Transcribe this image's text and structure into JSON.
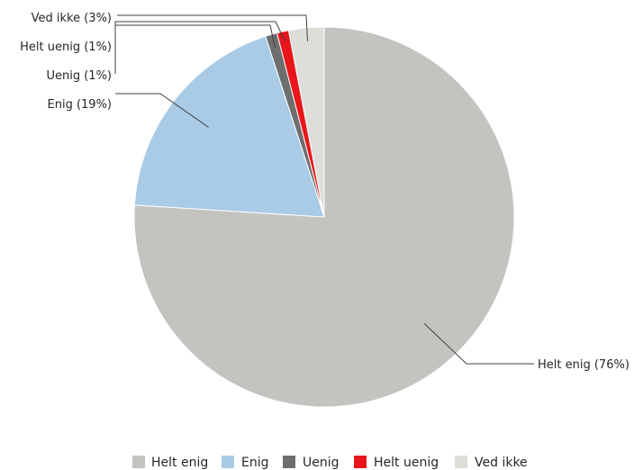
{
  "chart_data": {
    "type": "pie",
    "title": "",
    "legend_position": "bottom",
    "slices": [
      {
        "label": "Helt enig",
        "value": 76,
        "data_label": "Helt enig (76%)",
        "color": "#c3c3c0"
      },
      {
        "label": "Enig",
        "value": 19,
        "data_label": "Enig (19%)",
        "color": "#a9cbe6"
      },
      {
        "label": "Uenig",
        "value": 1,
        "data_label": "Uenig (1%)",
        "color": "#6e6e6e"
      },
      {
        "label": "Helt uenig",
        "value": 1,
        "data_label": "Helt uenig (1%)",
        "color": "#e8161b"
      },
      {
        "label": "Ved ikke",
        "value": 3,
        "data_label": "Ved ikke (3%)",
        "color": "#deded9"
      }
    ]
  }
}
